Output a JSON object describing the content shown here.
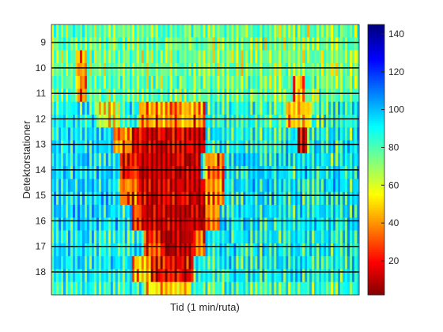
{
  "chart_data": {
    "type": "heatmap",
    "title": "",
    "xlabel": "Tid (1 min/ruta)",
    "ylabel": "Detektorstationer",
    "y_tick_labels": [
      "9",
      "10",
      "11",
      "12",
      "13",
      "14",
      "15",
      "16",
      "17",
      "18"
    ],
    "y_first_row": 8.3,
    "y_last_row": 18.9,
    "colorbar": {
      "colormap": "jet",
      "range": [
        2,
        145
      ],
      "ticks": [
        20,
        40,
        60,
        80,
        100,
        120,
        140
      ]
    },
    "rows": 21,
    "cols": 130,
    "speed_profile": [
      {
        "rows": [
          0,
          1
        ],
        "base": 80,
        "dips": []
      },
      {
        "rows": [
          2,
          3
        ],
        "base": 78,
        "dips": [
          {
            "from": 0.08,
            "to": 0.11,
            "value": 45
          }
        ]
      },
      {
        "rows": [
          4,
          5
        ],
        "base": 82,
        "dips": [
          {
            "from": 0.08,
            "to": 0.11,
            "value": 40
          },
          {
            "from": 0.78,
            "to": 0.82,
            "value": 48
          }
        ]
      },
      {
        "rows": [
          6,
          7
        ],
        "base": 92,
        "dips": [
          {
            "from": 0.14,
            "to": 0.22,
            "value": 60
          },
          {
            "from": 0.28,
            "to": 0.5,
            "value": 45
          },
          {
            "from": 0.76,
            "to": 0.84,
            "value": 50
          }
        ]
      },
      {
        "rows": [
          8,
          9
        ],
        "base": 95,
        "dips": [
          {
            "from": 0.2,
            "to": 0.26,
            "value": 40
          },
          {
            "from": 0.26,
            "to": 0.5,
            "value": 15
          },
          {
            "from": 0.8,
            "to": 0.83,
            "value": 15
          }
        ]
      },
      {
        "rows": [
          10,
          11
        ],
        "base": 98,
        "dips": [
          {
            "from": 0.22,
            "to": 0.28,
            "value": 25
          },
          {
            "from": 0.28,
            "to": 0.48,
            "value": 12
          },
          {
            "from": 0.5,
            "to": 0.56,
            "value": 40
          }
        ]
      },
      {
        "rows": [
          12,
          13
        ],
        "base": 98,
        "dips": [
          {
            "from": 0.22,
            "to": 0.28,
            "value": 40
          },
          {
            "from": 0.28,
            "to": 0.5,
            "value": 15
          },
          {
            "from": 0.5,
            "to": 0.56,
            "value": 40
          }
        ]
      },
      {
        "rows": [
          14,
          15
        ],
        "base": 98,
        "dips": [
          {
            "from": 0.26,
            "to": 0.3,
            "value": 30
          },
          {
            "from": 0.3,
            "to": 0.5,
            "value": 12
          },
          {
            "from": 0.5,
            "to": 0.54,
            "value": 40
          }
        ]
      },
      {
        "rows": [
          16,
          17
        ],
        "base": 96,
        "dips": [
          {
            "from": 0.3,
            "to": 0.36,
            "value": 30
          },
          {
            "from": 0.36,
            "to": 0.46,
            "value": 10
          },
          {
            "from": 0.46,
            "to": 0.5,
            "value": 40
          }
        ]
      },
      {
        "rows": [
          18,
          19
        ],
        "base": 95,
        "dips": [
          {
            "from": 0.26,
            "to": 0.32,
            "value": 50
          },
          {
            "from": 0.32,
            "to": 0.46,
            "value": 20
          }
        ]
      },
      {
        "rows": [
          20,
          20
        ],
        "base": 88,
        "dips": [
          {
            "from": 0.3,
            "to": 0.44,
            "value": 55
          }
        ]
      }
    ]
  }
}
